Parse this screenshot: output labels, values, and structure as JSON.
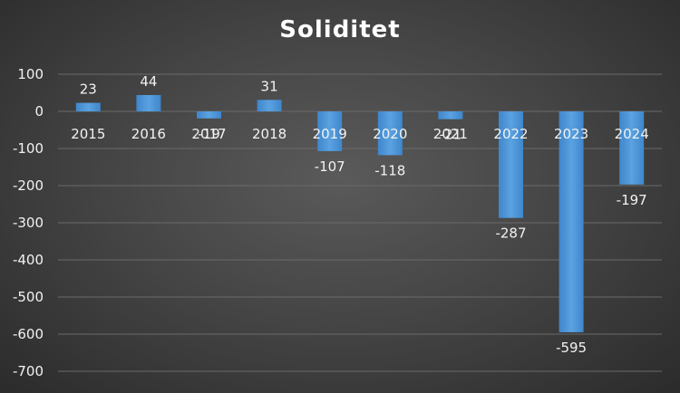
{
  "chart_data": {
    "type": "bar",
    "title": "Soliditet",
    "xlabel": "",
    "ylabel": "",
    "categories": [
      "2015",
      "2016",
      "2017",
      "2018",
      "2019",
      "2020",
      "2021",
      "2022",
      "2023",
      "2024"
    ],
    "values": [
      23,
      44,
      -19,
      31,
      -107,
      -118,
      -21,
      -287,
      -595,
      -197
    ],
    "yticks": [
      100,
      0,
      -100,
      -200,
      -300,
      -400,
      -500,
      -600,
      -700
    ],
    "ylim": [
      -700,
      100
    ],
    "grid": true,
    "legend": "none",
    "bar_color": "#4f97d8",
    "grid_color": "#6a6a6a",
    "text_color": "#f2f2f2"
  }
}
